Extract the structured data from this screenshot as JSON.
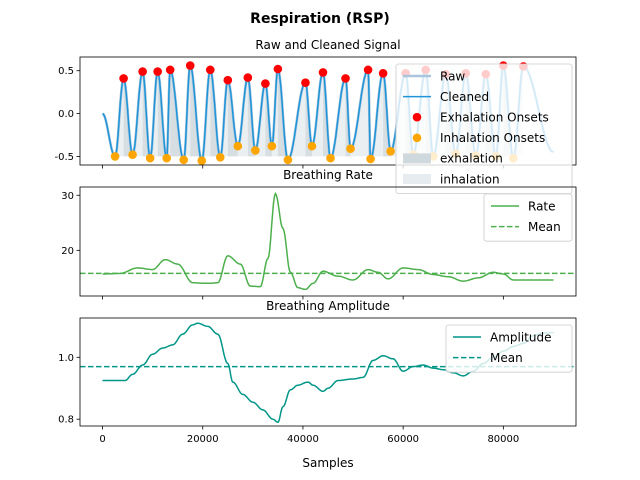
{
  "figure": {
    "title": "Respiration (RSP)",
    "xlabel": "Samples",
    "x_ticks": [
      0,
      20000,
      40000,
      60000,
      80000
    ],
    "x_range": [
      -4500,
      94500
    ]
  },
  "chart_data": [
    {
      "type": "line",
      "title": "Raw and Cleaned Signal",
      "ylim": [
        -0.6,
        0.66
      ],
      "y_ticks": [
        -0.5,
        0.0,
        0.5
      ],
      "legend_position": "upper right",
      "legend": [
        {
          "label": "Raw",
          "kind": "line",
          "color": "#a9c4dc"
        },
        {
          "label": "Cleaned",
          "kind": "line",
          "color": "#1f95d9"
        },
        {
          "label": "Exhalation Onsets",
          "kind": "marker",
          "color": "#ff0000"
        },
        {
          "label": "Inhalation Onsets",
          "kind": "marker",
          "color": "#ffa500"
        },
        {
          "label": "exhalation",
          "kind": "patch",
          "color": "#cfd8dc"
        },
        {
          "label": "inhalation",
          "kind": "patch",
          "color": "#e6ecef"
        }
      ],
      "series": [
        {
          "name": "Exhalation Onsets",
          "x": [
            4200,
            8000,
            11000,
            13500,
            17500,
            21500,
            25000,
            29000,
            32500,
            35000,
            40500,
            44000,
            48500,
            53000,
            56000,
            60500,
            64500,
            68500,
            72500,
            76500,
            80000,
            84000
          ],
          "y": [
            0.41,
            0.49,
            0.49,
            0.51,
            0.56,
            0.51,
            0.39,
            0.42,
            0.35,
            0.52,
            0.36,
            0.48,
            0.41,
            0.51,
            0.47,
            0.47,
            0.51,
            0.46,
            0.47,
            0.46,
            0.56,
            0.55
          ]
        },
        {
          "name": "Inhalation Onsets",
          "x": [
            2500,
            6000,
            9500,
            12800,
            16200,
            19800,
            23500,
            27000,
            30500,
            33800,
            37000,
            41800,
            45500,
            49500,
            53500,
            57500,
            62000,
            66000,
            70500,
            74500,
            78500,
            82000
          ],
          "y": [
            -0.5,
            -0.48,
            -0.52,
            -0.52,
            -0.54,
            -0.55,
            -0.51,
            -0.38,
            -0.43,
            -0.38,
            -0.54,
            -0.38,
            -0.52,
            -0.41,
            -0.53,
            -0.44,
            -0.48,
            -0.5,
            -0.47,
            -0.49,
            -0.5,
            -0.52
          ]
        }
      ]
    },
    {
      "type": "line",
      "title": "Breathing Rate",
      "ylim": [
        11.7,
        31.5
      ],
      "y_ticks": [
        20,
        30
      ],
      "legend_position": "upper right",
      "legend": [
        {
          "label": "Rate",
          "kind": "line",
          "color": "#4cb04c"
        },
        {
          "label": "Mean",
          "kind": "dashed",
          "color": "#4cb04c"
        }
      ],
      "mean": 15.8,
      "series": [
        {
          "name": "Rate",
          "x": [
            0,
            3500,
            7000,
            10000,
            12500,
            15000,
            18000,
            21000,
            23000,
            25000,
            27500,
            29500,
            31500,
            33000,
            34500,
            36000,
            37500,
            39000,
            40500,
            42000,
            44000,
            47000,
            50000,
            53000,
            55000,
            57000,
            60000,
            63000,
            66000,
            69000,
            72000,
            75000,
            78000,
            80000,
            82000,
            84000,
            87000,
            90000
          ],
          "y": [
            15.7,
            15.8,
            16.8,
            16.5,
            18.3,
            17.5,
            14.1,
            14.0,
            14.1,
            19.0,
            17.5,
            13.5,
            13.4,
            18.5,
            30.3,
            24.0,
            16.0,
            13.2,
            12.9,
            14.0,
            16.2,
            15.3,
            14.6,
            16.5,
            16.0,
            14.8,
            16.8,
            16.5,
            15.6,
            15.2,
            14.4,
            15.0,
            16.0,
            15.7,
            14.6,
            14.6,
            14.6,
            14.6
          ]
        }
      ]
    },
    {
      "type": "line",
      "title": "Breathing Amplitude",
      "ylim": [
        0.778,
        1.127
      ],
      "y_ticks": [
        0.8,
        1.0
      ],
      "legend_position": "upper right",
      "legend": [
        {
          "label": "Amplitude",
          "kind": "line",
          "color": "#009688"
        },
        {
          "label": "Mean",
          "kind": "dashed",
          "color": "#009688"
        }
      ],
      "mean": 0.97,
      "series": [
        {
          "name": "Amplitude",
          "x": [
            0,
            4500,
            6000,
            8000,
            10000,
            12000,
            14000,
            16000,
            18000,
            19000,
            21000,
            23000,
            25000,
            26000,
            28000,
            30000,
            32000,
            34000,
            35000,
            36000,
            37500,
            39000,
            41000,
            42000,
            44000,
            45000,
            47000,
            50000,
            52000,
            54000,
            56000,
            58000,
            60000,
            62000,
            64000,
            66000,
            68000,
            70000,
            72000,
            74000,
            76000,
            78000,
            80000,
            82000,
            84000,
            86000,
            88000,
            90000
          ],
          "y": [
            0.925,
            0.925,
            0.945,
            0.975,
            1.01,
            1.03,
            1.04,
            1.075,
            1.105,
            1.11,
            1.1,
            1.075,
            0.98,
            0.92,
            0.88,
            0.855,
            0.83,
            0.8,
            0.79,
            0.84,
            0.895,
            0.91,
            0.92,
            0.91,
            0.89,
            0.9,
            0.925,
            0.93,
            0.935,
            0.99,
            1.005,
            0.995,
            0.955,
            0.97,
            0.975,
            0.965,
            0.96,
            0.95,
            0.94,
            0.955,
            0.98,
            1.0,
            1.02,
            1.035,
            1.045,
            1.07,
            1.078,
            1.08
          ]
        }
      ]
    }
  ]
}
